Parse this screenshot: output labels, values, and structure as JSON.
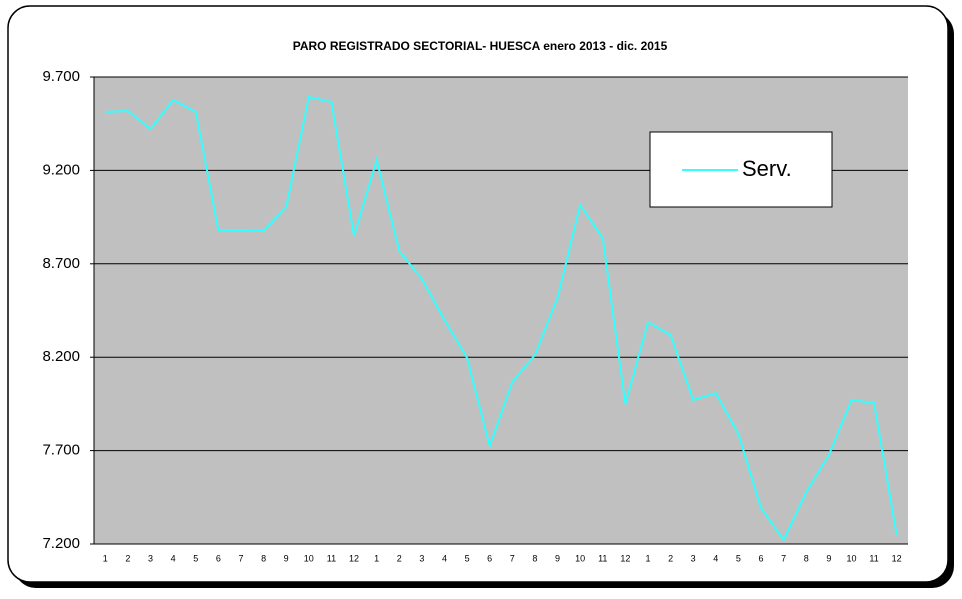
{
  "chart_data": {
    "type": "line",
    "title": "PARO REGISTRADO  SECTORIAL- HUESCA enero 2013 - dic. 2015",
    "categories": [
      "1",
      "2",
      "3",
      "4",
      "5",
      "6",
      "7",
      "8",
      "9",
      "10",
      "11",
      "12",
      "1",
      "2",
      "3",
      "4",
      "5",
      "6",
      "7",
      "8",
      "9",
      "10",
      "11",
      "12",
      "1",
      "2",
      "3",
      "4",
      "5",
      "6",
      "7",
      "8",
      "9",
      "10",
      "11",
      "12"
    ],
    "series": [
      {
        "name": "Serv.",
        "color": "#33ffff",
        "values": [
          9513,
          9518,
          9422,
          9577,
          9513,
          8881,
          8881,
          8876,
          9004,
          9593,
          9566,
          8849,
          9256,
          8768,
          8619,
          8399,
          8196,
          7725,
          8067,
          8212,
          8517,
          9015,
          8838,
          7949,
          8388,
          8319,
          7971,
          8008,
          7789,
          7393,
          7222,
          7478,
          7676,
          7971,
          7955,
          7248
        ]
      }
    ],
    "ylim": [
      7200,
      9700
    ],
    "yticks": [
      {
        "value": 7200,
        "label": "7.200"
      },
      {
        "value": 7700,
        "label": "7.700"
      },
      {
        "value": 8200,
        "label": "8.200"
      },
      {
        "value": 8700,
        "label": "8.700"
      },
      {
        "value": 9200,
        "label": "9.200"
      },
      {
        "value": 9700,
        "label": "9.700"
      }
    ],
    "grid": true,
    "legend": "upper right"
  }
}
